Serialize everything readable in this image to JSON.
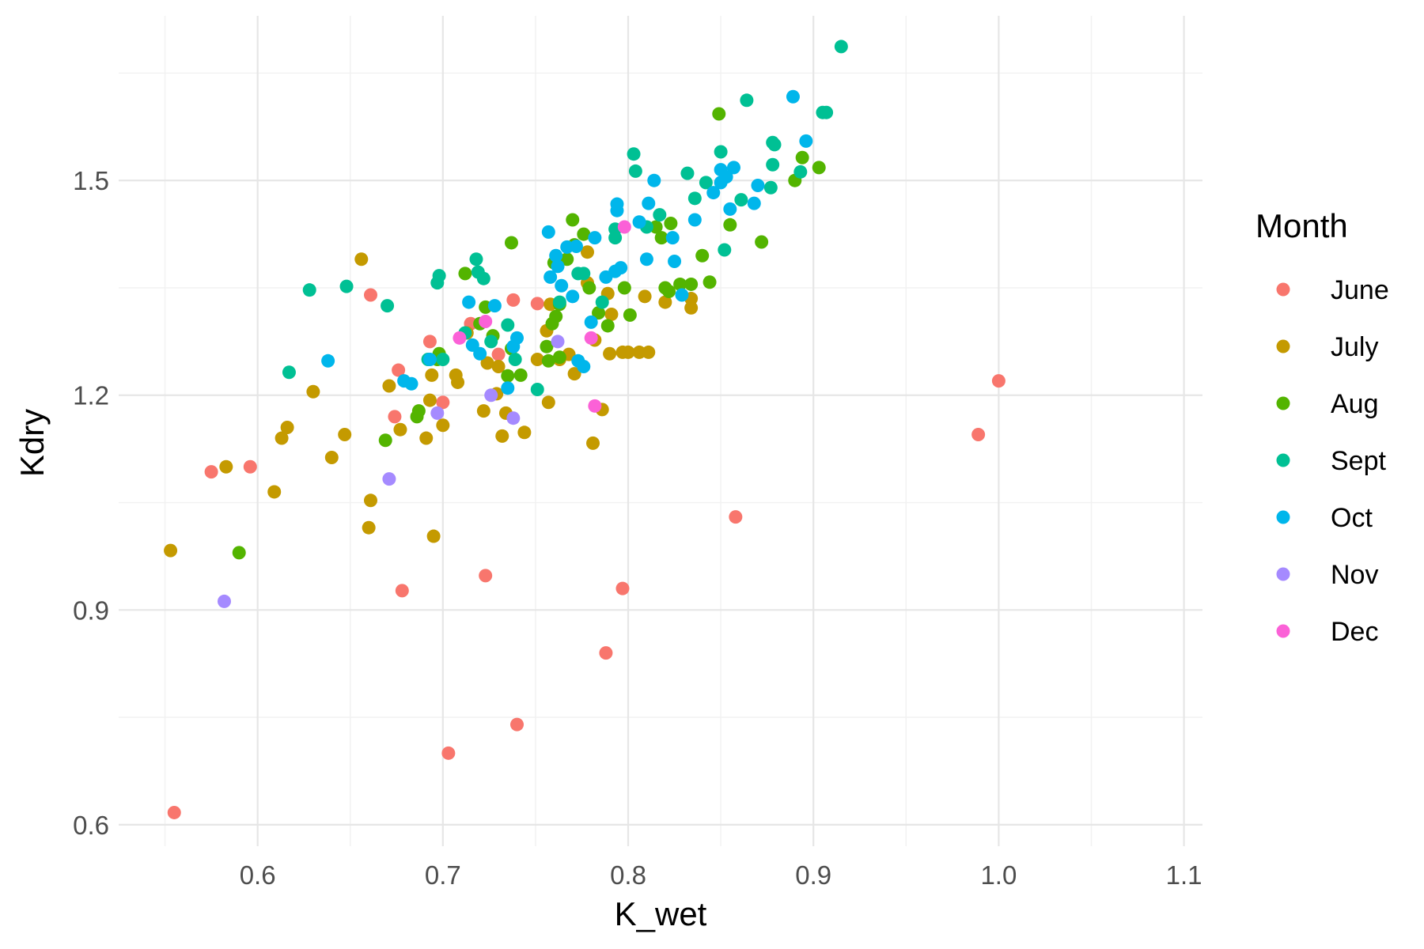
{
  "chart_data": {
    "type": "scatter",
    "title": "",
    "xlabel": "K_wet",
    "ylabel": "Kdry",
    "xlim": [
      0.525,
      1.11
    ],
    "ylim": [
      0.57,
      1.73
    ],
    "x_ticks": [
      0.6,
      0.7,
      0.8,
      0.9,
      1.0,
      1.1
    ],
    "x_tick_labels": [
      "0.6",
      "0.7",
      "0.8",
      "0.9",
      "1.0",
      "1.1"
    ],
    "y_ticks": [
      0.6,
      0.9,
      1.2,
      1.5
    ],
    "y_tick_labels": [
      "0.6",
      "0.9",
      "1.2",
      "1.5"
    ],
    "grid": true,
    "legend": {
      "title": "Month",
      "position": "right"
    },
    "series": [
      {
        "name": "June",
        "color": "#F8766D",
        "points": [
          [
            0.555,
            0.617
          ],
          [
            0.575,
            1.093
          ],
          [
            0.596,
            1.1
          ],
          [
            0.661,
            1.34
          ],
          [
            0.676,
            1.235
          ],
          [
            0.674,
            1.17
          ],
          [
            0.678,
            0.927
          ],
          [
            0.693,
            1.275
          ],
          [
            0.7,
            1.19
          ],
          [
            0.703,
            0.7
          ],
          [
            0.715,
            1.3
          ],
          [
            0.723,
            0.948
          ],
          [
            0.73,
            1.257
          ],
          [
            0.738,
            1.333
          ],
          [
            0.74,
            0.74
          ],
          [
            0.751,
            1.328
          ],
          [
            0.788,
            0.84
          ],
          [
            0.797,
            0.93
          ],
          [
            0.858,
            1.03
          ],
          [
            0.989,
            1.145
          ],
          [
            1.0,
            1.22
          ]
        ]
      },
      {
        "name": "July",
        "color": "#C49A00",
        "points": [
          [
            0.553,
            0.983
          ],
          [
            0.583,
            1.1
          ],
          [
            0.609,
            1.065
          ],
          [
            0.613,
            1.14
          ],
          [
            0.616,
            1.155
          ],
          [
            0.63,
            1.205
          ],
          [
            0.64,
            1.113
          ],
          [
            0.647,
            1.145
          ],
          [
            0.656,
            1.39
          ],
          [
            0.66,
            1.015
          ],
          [
            0.661,
            1.053
          ],
          [
            0.671,
            1.213
          ],
          [
            0.677,
            1.152
          ],
          [
            0.691,
            1.14
          ],
          [
            0.693,
            1.193
          ],
          [
            0.694,
            1.228
          ],
          [
            0.695,
            1.003
          ],
          [
            0.7,
            1.158
          ],
          [
            0.707,
            1.228
          ],
          [
            0.708,
            1.218
          ],
          [
            0.713,
            1.287
          ],
          [
            0.722,
            1.178
          ],
          [
            0.724,
            1.245
          ],
          [
            0.729,
            1.202
          ],
          [
            0.73,
            1.24
          ],
          [
            0.732,
            1.143
          ],
          [
            0.734,
            1.175
          ],
          [
            0.744,
            1.148
          ],
          [
            0.751,
            1.25
          ],
          [
            0.756,
            1.29
          ],
          [
            0.757,
            1.19
          ],
          [
            0.758,
            1.327
          ],
          [
            0.763,
            1.25
          ],
          [
            0.768,
            1.257
          ],
          [
            0.771,
            1.23
          ],
          [
            0.778,
            1.4
          ],
          [
            0.778,
            1.357
          ],
          [
            0.781,
            1.133
          ],
          [
            0.782,
            1.277
          ],
          [
            0.786,
            1.18
          ],
          [
            0.789,
            1.342
          ],
          [
            0.79,
            1.258
          ],
          [
            0.791,
            1.313
          ],
          [
            0.797,
            1.26
          ],
          [
            0.8,
            1.26
          ],
          [
            0.806,
            1.26
          ],
          [
            0.809,
            1.338
          ],
          [
            0.811,
            1.26
          ],
          [
            0.82,
            1.33
          ],
          [
            0.834,
            1.335
          ],
          [
            0.834,
            1.322
          ]
        ]
      },
      {
        "name": "Aug",
        "color": "#53B400",
        "points": [
          [
            0.59,
            0.98
          ],
          [
            0.669,
            1.137
          ],
          [
            0.686,
            1.17
          ],
          [
            0.687,
            1.178
          ],
          [
            0.697,
            1.25
          ],
          [
            0.698,
            1.258
          ],
          [
            0.712,
            1.37
          ],
          [
            0.72,
            1.3
          ],
          [
            0.723,
            1.323
          ],
          [
            0.727,
            1.283
          ],
          [
            0.735,
            1.227
          ],
          [
            0.737,
            1.265
          ],
          [
            0.737,
            1.413
          ],
          [
            0.742,
            1.228
          ],
          [
            0.756,
            1.268
          ],
          [
            0.757,
            1.248
          ],
          [
            0.759,
            1.3
          ],
          [
            0.76,
            1.385
          ],
          [
            0.761,
            1.31
          ],
          [
            0.763,
            1.253
          ],
          [
            0.763,
            1.327
          ],
          [
            0.767,
            1.39
          ],
          [
            0.77,
            1.445
          ],
          [
            0.771,
            1.41
          ],
          [
            0.776,
            1.425
          ],
          [
            0.779,
            1.35
          ],
          [
            0.784,
            1.315
          ],
          [
            0.789,
            1.297
          ],
          [
            0.798,
            1.35
          ],
          [
            0.801,
            1.312
          ],
          [
            0.815,
            1.435
          ],
          [
            0.818,
            1.42
          ],
          [
            0.82,
            1.35
          ],
          [
            0.822,
            1.345
          ],
          [
            0.823,
            1.44
          ],
          [
            0.828,
            1.355
          ],
          [
            0.834,
            1.355
          ],
          [
            0.84,
            1.395
          ],
          [
            0.844,
            1.358
          ],
          [
            0.849,
            1.593
          ],
          [
            0.855,
            1.438
          ],
          [
            0.872,
            1.414
          ],
          [
            0.89,
            1.5
          ],
          [
            0.894,
            1.532
          ],
          [
            0.903,
            1.518
          ]
        ]
      },
      {
        "name": "Sept",
        "color": "#00C094",
        "points": [
          [
            0.617,
            1.232
          ],
          [
            0.628,
            1.347
          ],
          [
            0.648,
            1.352
          ],
          [
            0.67,
            1.325
          ],
          [
            0.692,
            1.25
          ],
          [
            0.697,
            1.357
          ],
          [
            0.698,
            1.367
          ],
          [
            0.7,
            1.25
          ],
          [
            0.712,
            1.287
          ],
          [
            0.718,
            1.39
          ],
          [
            0.719,
            1.372
          ],
          [
            0.722,
            1.363
          ],
          [
            0.726,
            1.275
          ],
          [
            0.735,
            1.298
          ],
          [
            0.739,
            1.25
          ],
          [
            0.751,
            1.208
          ],
          [
            0.763,
            1.33
          ],
          [
            0.773,
            1.37
          ],
          [
            0.776,
            1.37
          ],
          [
            0.786,
            1.33
          ],
          [
            0.793,
            1.432
          ],
          [
            0.793,
            1.42
          ],
          [
            0.803,
            1.537
          ],
          [
            0.804,
            1.513
          ],
          [
            0.81,
            1.435
          ],
          [
            0.817,
            1.452
          ],
          [
            0.832,
            1.51
          ],
          [
            0.836,
            1.475
          ],
          [
            0.842,
            1.497
          ],
          [
            0.85,
            1.54
          ],
          [
            0.852,
            1.403
          ],
          [
            0.861,
            1.473
          ],
          [
            0.864,
            1.612
          ],
          [
            0.877,
            1.49
          ],
          [
            0.878,
            1.553
          ],
          [
            0.878,
            1.522
          ],
          [
            0.879,
            1.55
          ],
          [
            0.893,
            1.512
          ],
          [
            0.905,
            1.595
          ],
          [
            0.907,
            1.595
          ],
          [
            0.915,
            1.687
          ]
        ]
      },
      {
        "name": "Oct",
        "color": "#00B6EB",
        "points": [
          [
            0.638,
            1.248
          ],
          [
            0.679,
            1.22
          ],
          [
            0.683,
            1.216
          ],
          [
            0.693,
            1.25
          ],
          [
            0.714,
            1.33
          ],
          [
            0.716,
            1.27
          ],
          [
            0.72,
            1.258
          ],
          [
            0.728,
            1.325
          ],
          [
            0.735,
            1.21
          ],
          [
            0.738,
            1.268
          ],
          [
            0.74,
            1.28
          ],
          [
            0.757,
            1.428
          ],
          [
            0.758,
            1.365
          ],
          [
            0.761,
            1.395
          ],
          [
            0.762,
            1.38
          ],
          [
            0.764,
            1.353
          ],
          [
            0.767,
            1.407
          ],
          [
            0.77,
            1.338
          ],
          [
            0.772,
            1.408
          ],
          [
            0.773,
            1.248
          ],
          [
            0.776,
            1.24
          ],
          [
            0.78,
            1.302
          ],
          [
            0.782,
            1.42
          ],
          [
            0.788,
            1.365
          ],
          [
            0.793,
            1.373
          ],
          [
            0.794,
            1.458
          ],
          [
            0.794,
            1.467
          ],
          [
            0.796,
            1.378
          ],
          [
            0.806,
            1.442
          ],
          [
            0.81,
            1.39
          ],
          [
            0.811,
            1.468
          ],
          [
            0.814,
            1.5
          ],
          [
            0.824,
            1.42
          ],
          [
            0.825,
            1.387
          ],
          [
            0.829,
            1.34
          ],
          [
            0.836,
            1.445
          ],
          [
            0.846,
            1.483
          ],
          [
            0.85,
            1.515
          ],
          [
            0.85,
            1.497
          ],
          [
            0.853,
            1.505
          ],
          [
            0.855,
            1.46
          ],
          [
            0.857,
            1.518
          ],
          [
            0.868,
            1.468
          ],
          [
            0.87,
            1.493
          ],
          [
            0.889,
            1.617
          ],
          [
            0.896,
            1.555
          ]
        ]
      },
      {
        "name": "Nov",
        "color": "#A58AFF",
        "points": [
          [
            0.582,
            0.912
          ],
          [
            0.671,
            1.083
          ],
          [
            0.697,
            1.175
          ],
          [
            0.726,
            1.2
          ],
          [
            0.738,
            1.168
          ],
          [
            0.762,
            1.275
          ]
        ]
      },
      {
        "name": "Dec",
        "color": "#FB61D7",
        "points": [
          [
            0.709,
            1.28
          ],
          [
            0.723,
            1.303
          ],
          [
            0.78,
            1.28
          ],
          [
            0.782,
            1.185
          ],
          [
            0.798,
            1.435
          ]
        ]
      }
    ]
  }
}
